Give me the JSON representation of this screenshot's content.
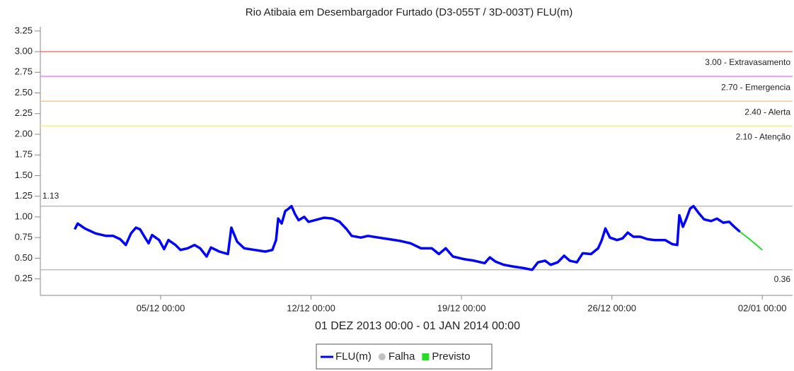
{
  "chart_data": {
    "type": "line",
    "title": "Rio Atibaia em Desembargador Furtado (D3-055T / 3D-003T) FLU(m)",
    "x_label": "01 DEZ 2013 00:00 - 01 JAN 2014 00:00",
    "xlim": [
      -1.6,
      33.41
    ],
    "xticks": [
      {
        "value": 4,
        "label": "05/12 00:00"
      },
      {
        "value": 11,
        "label": "12/12 00:00"
      },
      {
        "value": 18,
        "label": "19/12 00:00"
      },
      {
        "value": 25,
        "label": "26/12 00:00"
      },
      {
        "value": 32,
        "label": "02/01 00:00"
      }
    ],
    "ylim": [
      0.05,
      3.3
    ],
    "yticks": [
      0.25,
      {
        "value": 0.5,
        "label": "0.50"
      },
      0.75,
      {
        "value": 1,
        "label": "1.00"
      },
      1.25,
      {
        "value": 1.5,
        "label": "1.50"
      },
      1.75,
      {
        "value": 2,
        "label": "2.00"
      },
      2.25,
      {
        "value": 2.5,
        "label": "2.50"
      },
      2.75,
      {
        "value": 3,
        "label": "3.00"
      },
      3.25
    ],
    "thresholds": [
      {
        "value": 3.0,
        "label": "3.00 - Extravasamento",
        "color": "#f07878"
      },
      {
        "value": 2.7,
        "label": "2.70 - Emergencia",
        "color": "#ff7cff"
      },
      {
        "value": 2.4,
        "label": "2.40 - Alerta",
        "color": "#ffc888"
      },
      {
        "value": 2.1,
        "label": "2.10 - Atenção",
        "color": "#f4f080"
      }
    ],
    "reference_lines": [
      {
        "value": 1.13,
        "label_position": "left"
      },
      {
        "value": 0.36,
        "label_position": "right"
      }
    ],
    "series": [
      {
        "name": "FLU(m)",
        "color": "#0000ff",
        "marker": "line",
        "x": [
          0,
          0.14,
          0.47,
          0.97,
          1.46,
          1.79,
          2.12,
          2.38,
          2.62,
          2.85,
          3.04,
          3.27,
          3.44,
          3.6,
          3.93,
          4.16,
          4.36,
          4.69,
          4.92,
          5.25,
          5.58,
          5.84,
          6.14,
          6.34,
          6.73,
          7.13,
          7.29,
          7.56,
          7.89,
          8.38,
          8.87,
          9.2,
          9.37,
          9.47,
          9.63,
          9.8,
          9.96,
          10.09,
          10.26,
          10.42,
          10.68,
          10.88,
          11.18,
          11.61,
          12.0,
          12.33,
          12.66,
          12.89,
          13.32,
          13.65,
          14.14,
          14.64,
          15.13,
          15.63,
          16.12,
          16.62,
          16.95,
          17.27,
          17.6,
          18.1,
          18.59,
          19.08,
          19.32,
          19.58,
          19.97,
          20.4,
          20.89,
          21.29,
          21.56,
          21.89,
          22.15,
          22.48,
          22.78,
          23.04,
          23.37,
          23.64,
          24.03,
          24.36,
          24.53,
          24.7,
          24.91,
          25.24,
          25.5,
          25.74,
          26.0,
          26.32,
          26.66,
          26.99,
          27.48,
          27.81,
          28.04,
          28.14,
          28.31,
          28.47,
          28.64,
          28.8,
          29.03,
          29.29,
          29.62,
          29.89,
          30.18,
          30.46,
          30.7,
          30.96
        ],
        "values": [
          0.85,
          0.92,
          0.86,
          0.8,
          0.77,
          0.77,
          0.73,
          0.66,
          0.8,
          0.87,
          0.85,
          0.75,
          0.68,
          0.78,
          0.72,
          0.61,
          0.72,
          0.66,
          0.6,
          0.62,
          0.66,
          0.62,
          0.52,
          0.63,
          0.58,
          0.55,
          0.87,
          0.7,
          0.62,
          0.6,
          0.58,
          0.6,
          0.72,
          0.98,
          0.92,
          1.07,
          1.1,
          1.13,
          1.03,
          0.96,
          1.0,
          0.94,
          0.96,
          0.99,
          0.98,
          0.94,
          0.85,
          0.77,
          0.75,
          0.77,
          0.75,
          0.73,
          0.71,
          0.68,
          0.62,
          0.62,
          0.55,
          0.62,
          0.52,
          0.49,
          0.47,
          0.44,
          0.51,
          0.46,
          0.42,
          0.4,
          0.38,
          0.36,
          0.45,
          0.47,
          0.42,
          0.45,
          0.53,
          0.47,
          0.45,
          0.56,
          0.55,
          0.62,
          0.72,
          0.86,
          0.75,
          0.72,
          0.74,
          0.81,
          0.76,
          0.76,
          0.73,
          0.72,
          0.72,
          0.67,
          0.66,
          1.02,
          0.88,
          0.98,
          1.1,
          1.13,
          1.05,
          0.97,
          0.95,
          0.98,
          0.93,
          0.94,
          0.88,
          0.82
        ]
      },
      {
        "name": "Falha",
        "color": "#c0c0c0",
        "marker": "circle",
        "x": [],
        "values": []
      },
      {
        "name": "Previsto",
        "color": "#22dd22",
        "marker": "square",
        "x": [
          30.96,
          31.46,
          32.0
        ],
        "values": [
          0.82,
          0.72,
          0.6
        ]
      }
    ]
  }
}
